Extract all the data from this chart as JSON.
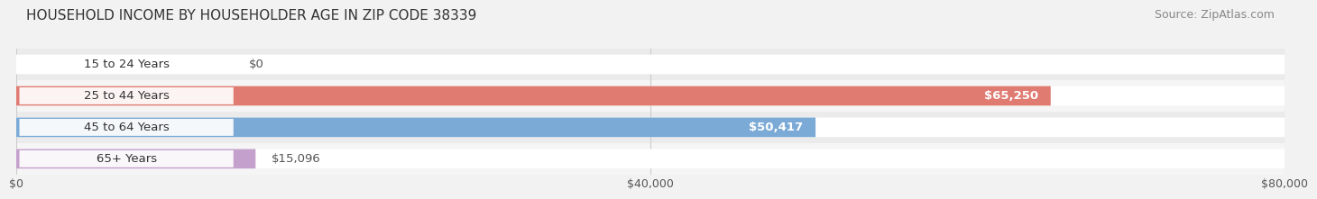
{
  "title": "HOUSEHOLD INCOME BY HOUSEHOLDER AGE IN ZIP CODE 38339",
  "source": "Source: ZipAtlas.com",
  "categories": [
    "15 to 24 Years",
    "25 to 44 Years",
    "45 to 64 Years",
    "65+ Years"
  ],
  "values": [
    0,
    65250,
    50417,
    15096
  ],
  "bar_colors": [
    "#edbc96",
    "#e07b72",
    "#7baad6",
    "#c4a0cc"
  ],
  "xlim": [
    0,
    80000
  ],
  "xticks": [
    0,
    40000,
    80000
  ],
  "xtick_labels": [
    "$0",
    "$40,000",
    "$80,000"
  ],
  "value_labels": [
    "$0",
    "$65,250",
    "$50,417",
    "$15,096"
  ],
  "value_inside": [
    false,
    true,
    true,
    false
  ],
  "title_fontsize": 11,
  "source_fontsize": 9,
  "label_fontsize": 9.5,
  "tick_fontsize": 9,
  "background_color": "#f2f2f2",
  "bar_bg_color": "#ffffff",
  "row_bg_even": "#ebebeb",
  "row_bg_odd": "#f5f5f5"
}
